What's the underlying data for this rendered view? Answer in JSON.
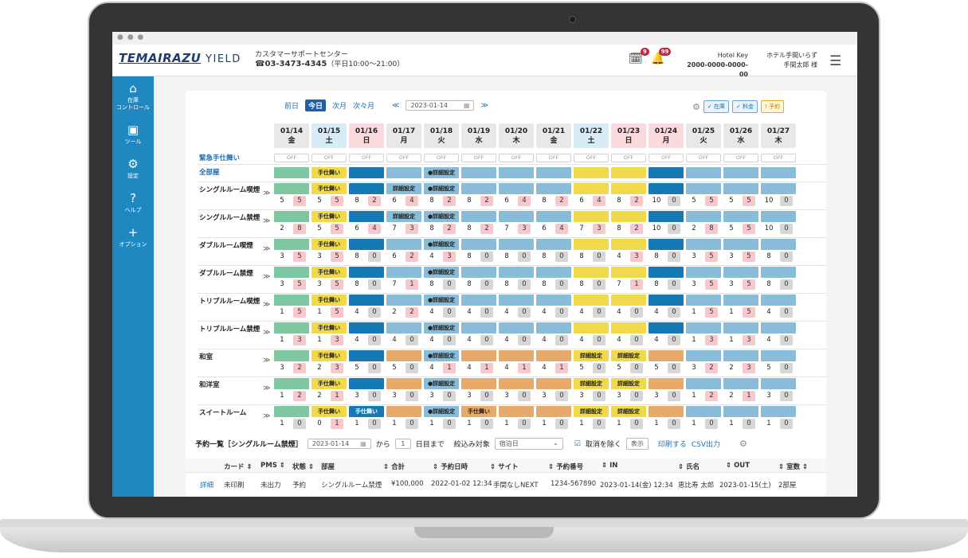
{
  "app": {
    "logo_main": "TEMAIRAZU",
    "logo_sub": "YIELD",
    "window_dots": "● ● ●"
  },
  "support": {
    "title": "カスタマーサポートセンター",
    "phone": "03-3473-4345",
    "hours": "（平日10:00〜21:00）"
  },
  "header": {
    "task_badge": "9",
    "bell_badge": "99",
    "hotel_key_label": "Hotel Key",
    "hotel_key": "2000-0000-0000-00",
    "hotel_name": "ホテル手間いらず",
    "user": "手間太郎 様"
  },
  "sidebar": {
    "items": [
      {
        "label": "在庫\nコントロール",
        "icon": "home-icon"
      },
      {
        "label": "ツール",
        "icon": "toolbox-icon"
      },
      {
        "label": "設定",
        "icon": "gear-icon"
      },
      {
        "label": "ヘルプ",
        "icon": "help-icon"
      },
      {
        "label": "オプション",
        "icon": "plus-icon"
      }
    ]
  },
  "nav": {
    "prev": "前日",
    "today": "今日",
    "next_month": "次月",
    "month_after": "次々月",
    "date": "2023-01-14",
    "prev_arrow": "≪",
    "next_arrow": "≫"
  },
  "legend": {
    "stock": "在庫",
    "price": "料金",
    "reserve": "予約"
  },
  "dates": [
    {
      "d": "01/14",
      "w": "金",
      "c": "#e8e8e8"
    },
    {
      "d": "01/15",
      "w": "土",
      "c": "#d8ecf7"
    },
    {
      "d": "01/16",
      "w": "日",
      "c": "#fadadd"
    },
    {
      "d": "01/17",
      "w": "月",
      "c": "#e8e8e8"
    },
    {
      "d": "01/18",
      "w": "火",
      "c": "#e8e8e8"
    },
    {
      "d": "01/19",
      "w": "水",
      "c": "#e8e8e8"
    },
    {
      "d": "01/20",
      "w": "木",
      "c": "#e8e8e8"
    },
    {
      "d": "01/21",
      "w": "金",
      "c": "#e8e8e8"
    },
    {
      "d": "01/22",
      "w": "土",
      "c": "#d8ecf7"
    },
    {
      "d": "01/23",
      "w": "日",
      "c": "#fadadd"
    },
    {
      "d": "01/24",
      "w": "月",
      "c": "#fadadd"
    },
    {
      "d": "01/25",
      "w": "火",
      "c": "#e8e8e8"
    },
    {
      "d": "01/26",
      "w": "水",
      "c": "#e8e8e8"
    },
    {
      "d": "01/27",
      "w": "木",
      "c": "#e8e8e8"
    }
  ],
  "emergency": {
    "label": "緊急手仕舞い",
    "off": "OFF"
  },
  "all_rooms": {
    "label": "全部屋",
    "cells": [
      "g",
      "y:手仕舞い",
      "d",
      "l",
      "l:●詳細設定",
      "l",
      "l",
      "l",
      "y",
      "y",
      "d",
      "l",
      "l",
      "l"
    ]
  },
  "rooms": [
    {
      "name": "シングルルーム喫煙",
      "bars": [
        "g",
        "y:手仕舞い",
        "d",
        "l:詳細設定",
        "l:●詳細設定",
        "l",
        "l",
        "l",
        "y",
        "y",
        "d",
        "l",
        "l",
        "l"
      ],
      "n": [
        [
          5,
          5
        ],
        [
          5,
          5
        ],
        [
          8,
          2
        ],
        [
          6,
          4
        ],
        [
          8,
          2
        ],
        [
          8,
          2
        ],
        [
          6,
          4
        ],
        [
          8,
          2
        ],
        [
          6,
          4
        ],
        [
          8,
          2
        ],
        [
          10,
          0
        ],
        [
          5,
          5
        ],
        [
          5,
          5
        ],
        [
          10,
          0
        ]
      ]
    },
    {
      "name": "シングルルーム禁煙",
      "bars": [
        "g",
        "y:手仕舞い",
        "d",
        "l:詳細設定",
        "l:●詳細設定",
        "l",
        "l",
        "l",
        "y",
        "y",
        "d",
        "l",
        "l",
        "l"
      ],
      "n": [
        [
          2,
          8
        ],
        [
          5,
          5
        ],
        [
          6,
          4
        ],
        [
          7,
          3
        ],
        [
          8,
          2
        ],
        [
          8,
          2
        ],
        [
          7,
          3
        ],
        [
          6,
          4
        ],
        [
          7,
          3
        ],
        [
          8,
          2
        ],
        [
          10,
          0
        ],
        [
          2,
          8
        ],
        [
          5,
          5
        ],
        [
          10,
          0
        ]
      ]
    },
    {
      "name": "ダブルルーム喫煙",
      "bars": [
        "g",
        "y:手仕舞い",
        "d",
        "l",
        "l:●詳細設定",
        "l",
        "l",
        "l",
        "y",
        "y",
        "d",
        "l",
        "l",
        "l"
      ],
      "n": [
        [
          3,
          5
        ],
        [
          3,
          5
        ],
        [
          8,
          0
        ],
        [
          6,
          2
        ],
        [
          4,
          3
        ],
        [
          8,
          0
        ],
        [
          8,
          0
        ],
        [
          8,
          0
        ],
        [
          8,
          0
        ],
        [
          4,
          3
        ],
        [
          8,
          0
        ],
        [
          3,
          5
        ],
        [
          3,
          5
        ],
        [
          8,
          0
        ]
      ]
    },
    {
      "name": "ダブルルーム禁煙",
      "bars": [
        "g",
        "y:手仕舞い",
        "d",
        "l",
        "l:●詳細設定",
        "l",
        "l",
        "l",
        "y",
        "y",
        "d",
        "l",
        "l",
        "l"
      ],
      "n": [
        [
          3,
          5
        ],
        [
          3,
          5
        ],
        [
          8,
          0
        ],
        [
          7,
          1
        ],
        [
          8,
          0
        ],
        [
          8,
          0
        ],
        [
          8,
          0
        ],
        [
          8,
          0
        ],
        [
          8,
          0
        ],
        [
          7,
          1
        ],
        [
          8,
          0
        ],
        [
          3,
          5
        ],
        [
          3,
          5
        ],
        [
          8,
          0
        ]
      ]
    },
    {
      "name": "トリプルルーム喫煙",
      "bars": [
        "g",
        "y:手仕舞い",
        "d",
        "l",
        "l:●詳細設定",
        "l",
        "l",
        "l",
        "y",
        "y",
        "d",
        "l",
        "l",
        "l"
      ],
      "n": [
        [
          1,
          5
        ],
        [
          1,
          5
        ],
        [
          4,
          0
        ],
        [
          2,
          2
        ],
        [
          4,
          0
        ],
        [
          4,
          0
        ],
        [
          4,
          0
        ],
        [
          4,
          0
        ],
        [
          4,
          0
        ],
        [
          4,
          0
        ],
        [
          4,
          0
        ],
        [
          1,
          5
        ],
        [
          1,
          5
        ],
        [
          4,
          0
        ]
      ]
    },
    {
      "name": "トリプルルーム禁煙",
      "bars": [
        "g",
        "y:手仕舞い",
        "d",
        "l",
        "l:●詳細設定",
        "l",
        "l",
        "l",
        "y",
        "y",
        "d",
        "l",
        "l",
        "l"
      ],
      "n": [
        [
          1,
          3
        ],
        [
          1,
          3
        ],
        [
          4,
          0
        ],
        [
          4,
          0
        ],
        [
          4,
          0
        ],
        [
          4,
          0
        ],
        [
          4,
          0
        ],
        [
          4,
          0
        ],
        [
          4,
          0
        ],
        [
          4,
          0
        ],
        [
          4,
          0
        ],
        [
          1,
          3
        ],
        [
          1,
          3
        ],
        [
          4,
          0
        ]
      ]
    },
    {
      "name": "和室",
      "bars": [
        "g",
        "y:手仕舞い",
        "d",
        "o",
        "l:●詳細設定",
        "o",
        "o",
        "o",
        "y:詳細設定",
        "y:詳細設定",
        "o",
        "l",
        "l",
        "l"
      ],
      "n": [
        [
          3,
          2
        ],
        [
          2,
          3
        ],
        [
          5,
          0
        ],
        [
          5,
          0
        ],
        [
          4,
          1
        ],
        [
          4,
          1
        ],
        [
          4,
          1
        ],
        [
          4,
          1
        ],
        [
          5,
          0
        ],
        [
          5,
          0
        ],
        [
          5,
          0
        ],
        [
          3,
          2
        ],
        [
          2,
          3
        ],
        [
          5,
          0
        ]
      ]
    },
    {
      "name": "和洋室",
      "bars": [
        "g",
        "y:手仕舞い",
        "d",
        "o",
        "l:●詳細設定",
        "o",
        "o",
        "o",
        "y:詳細設定",
        "y:詳細設定",
        "o",
        "l",
        "l",
        "l"
      ],
      "n": [
        [
          1,
          2
        ],
        [
          2,
          1
        ],
        [
          3,
          0
        ],
        [
          3,
          0
        ],
        [
          3,
          0
        ],
        [
          3,
          0
        ],
        [
          3,
          0
        ],
        [
          3,
          0
        ],
        [
          3,
          0
        ],
        [
          3,
          0
        ],
        [
          3,
          0
        ],
        [
          1,
          2
        ],
        [
          2,
          1
        ],
        [
          3,
          0
        ]
      ]
    },
    {
      "name": "スイートルーム",
      "bars": [
        "g",
        "y:手仕舞い",
        "d:手仕舞い",
        "o",
        "l:●詳細設定",
        "o:手仕舞い",
        "o",
        "o",
        "y:詳細設定",
        "y:詳細設定",
        "o",
        "l",
        "l",
        "l"
      ],
      "n": [
        [
          1,
          0
        ],
        [
          0,
          1
        ],
        [
          1,
          0
        ],
        [
          1,
          0
        ],
        [
          1,
          0
        ],
        [
          1,
          0
        ],
        [
          1,
          0
        ],
        [
          1,
          0
        ],
        [
          1,
          0
        ],
        [
          1,
          0
        ],
        [
          1,
          0
        ],
        [
          1,
          0
        ],
        [
          1,
          0
        ],
        [
          1,
          0
        ]
      ]
    }
  ],
  "list": {
    "title": "予約一覧［シングルルーム禁煙］",
    "date": "2023-01-14",
    "from": "から",
    "days": "1",
    "until": "日目まで",
    "filter_label": "絞込み対象",
    "filter_value": "宿泊日",
    "exclude_cancel": "取消を除く",
    "show": "表示",
    "print": "印刷する",
    "csv": "CSV出力"
  },
  "table": {
    "headers": [
      "カード ⇕",
      "PMS ⇕",
      "状態 ⇕",
      "部屋",
      "⇕ 合計",
      "⇕ 予約日時",
      "⇕ サイト",
      "⇕ 予約番号",
      "⇕ IN",
      "⇕ 氏名",
      "⇕ OUT",
      "⇕ 室数 ⇕"
    ],
    "row": [
      "詳細",
      "未印刷",
      "未出力",
      "予約",
      "シングルルーム禁煙",
      "¥100,000",
      "2022-01-02 12:34",
      "手間なしNEXT",
      "1234-567890",
      "2023-01-14(金) 12:34",
      "恵比寿 太郎",
      "2023-01-15(土)",
      "2部屋"
    ]
  },
  "colors": {
    "g": "#7fc7a0",
    "y": "#f0d94a",
    "d": "#1779b4",
    "l": "#88bcd8",
    "o": "#e6aa6a",
    "pink": "#f6c8cc",
    "gray": "#d6d6d6",
    "sidebar": "#1f88c1"
  }
}
